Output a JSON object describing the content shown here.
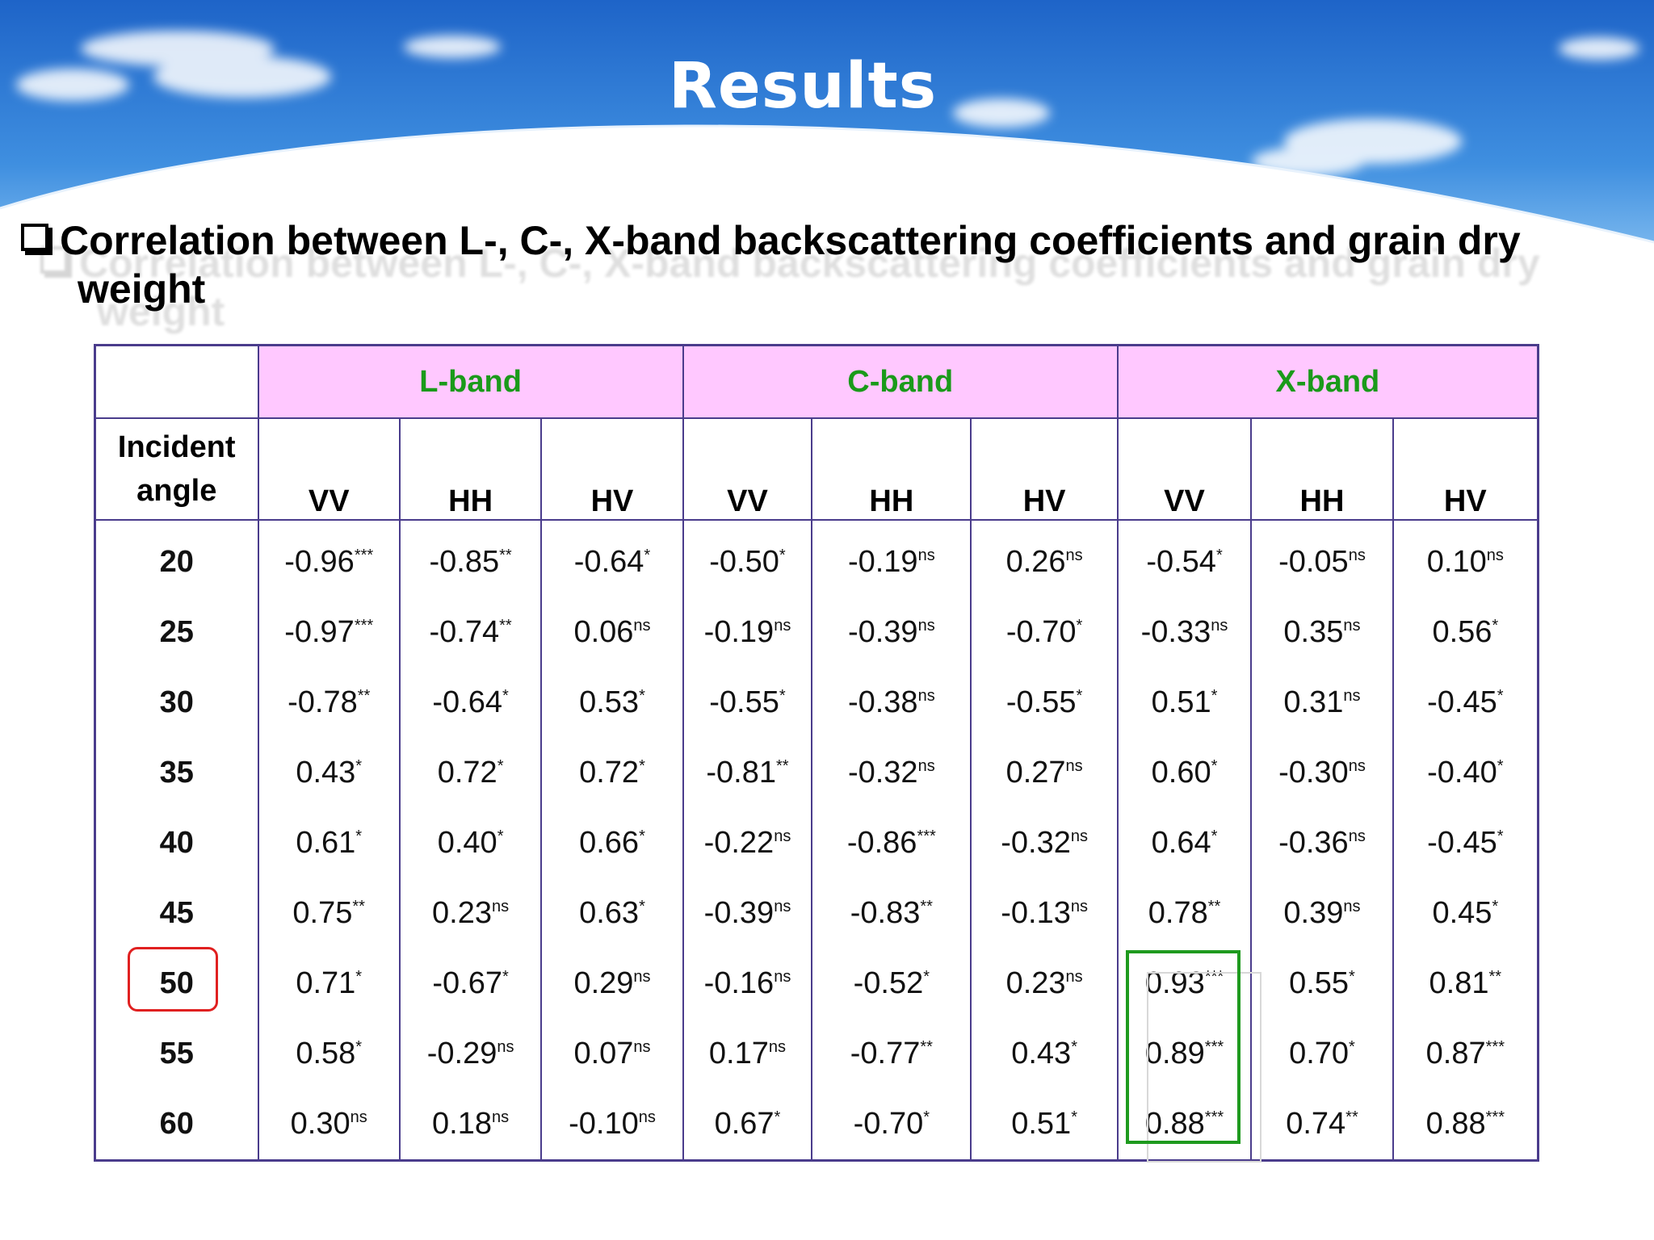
{
  "slide": {
    "title": "Results"
  },
  "heading": {
    "line1": "Correlation between L-, C-, X-band backscattering coefficients and grain dry",
    "line2": "weight"
  },
  "table": {
    "angle_header_line1": "Incident",
    "angle_header_line2": "angle",
    "bands": [
      "L-band",
      "C-band",
      "X-band"
    ],
    "polarizations": [
      "VV",
      "HH",
      "HV",
      "VV",
      "HH",
      "HV",
      "VV",
      "HH",
      "HV"
    ],
    "rows": [
      {
        "angle": "20",
        "cells": [
          [
            "-0.96",
            "***"
          ],
          [
            "-0.85",
            "**"
          ],
          [
            "-0.64",
            "*"
          ],
          [
            "-0.50",
            "*"
          ],
          [
            "-0.19",
            "ns"
          ],
          [
            "0.26",
            "ns"
          ],
          [
            "-0.54",
            "*"
          ],
          [
            "-0.05",
            "ns"
          ],
          [
            "0.10",
            "ns"
          ]
        ]
      },
      {
        "angle": "25",
        "cells": [
          [
            "-0.97",
            "***"
          ],
          [
            "-0.74",
            "**"
          ],
          [
            "0.06",
            "ns"
          ],
          [
            "-0.19",
            "ns"
          ],
          [
            "-0.39",
            "ns"
          ],
          [
            "-0.70",
            "*"
          ],
          [
            "-0.33",
            "ns"
          ],
          [
            "0.35",
            "ns"
          ],
          [
            "0.56",
            "*"
          ]
        ]
      },
      {
        "angle": "30",
        "cells": [
          [
            "-0.78",
            "**"
          ],
          [
            "-0.64",
            "*"
          ],
          [
            "0.53",
            "*"
          ],
          [
            "-0.55",
            "*"
          ],
          [
            "-0.38",
            "ns"
          ],
          [
            "-0.55",
            "*"
          ],
          [
            "0.51",
            "*"
          ],
          [
            "0.31",
            "ns"
          ],
          [
            "-0.45",
            "*"
          ]
        ]
      },
      {
        "angle": "35",
        "cells": [
          [
            "0.43",
            "*"
          ],
          [
            "0.72",
            "*"
          ],
          [
            "0.72",
            "*"
          ],
          [
            "-0.81",
            "**"
          ],
          [
            "-0.32",
            "ns"
          ],
          [
            "0.27",
            "ns"
          ],
          [
            "0.60",
            "*"
          ],
          [
            "-0.30",
            "ns"
          ],
          [
            "-0.40",
            "*"
          ]
        ]
      },
      {
        "angle": "40",
        "cells": [
          [
            "0.61",
            "*"
          ],
          [
            "0.40",
            "*"
          ],
          [
            "0.66",
            "*"
          ],
          [
            "-0.22",
            "ns"
          ],
          [
            "-0.86",
            "***"
          ],
          [
            "-0.32",
            "ns"
          ],
          [
            "0.64",
            "*"
          ],
          [
            "-0.36",
            "ns"
          ],
          [
            "-0.45",
            "*"
          ]
        ]
      },
      {
        "angle": "45",
        "cells": [
          [
            "0.75",
            "**"
          ],
          [
            "0.23",
            "ns"
          ],
          [
            "0.63",
            "*"
          ],
          [
            "-0.39",
            "ns"
          ],
          [
            "-0.83",
            "**"
          ],
          [
            "-0.13",
            "ns"
          ],
          [
            "0.78",
            "**"
          ],
          [
            "0.39",
            "ns"
          ],
          [
            "0.45",
            "*"
          ]
        ]
      },
      {
        "angle": "50",
        "cells": [
          [
            "0.71",
            "*"
          ],
          [
            "-0.67",
            "*"
          ],
          [
            "0.29",
            "ns"
          ],
          [
            "-0.16",
            "ns"
          ],
          [
            "-0.52",
            "*"
          ],
          [
            "0.23",
            "ns"
          ],
          [
            "0.93",
            "***"
          ],
          [
            "0.55",
            "*"
          ],
          [
            "0.81",
            "**"
          ]
        ]
      },
      {
        "angle": "55",
        "cells": [
          [
            "0.58",
            "*"
          ],
          [
            "-0.29",
            "ns"
          ],
          [
            "0.07",
            "ns"
          ],
          [
            "0.17",
            "ns"
          ],
          [
            "-0.77",
            "**"
          ],
          [
            "0.43",
            "*"
          ],
          [
            "0.89",
            "***"
          ],
          [
            "0.70",
            "*"
          ],
          [
            "0.87",
            "***"
          ]
        ]
      },
      {
        "angle": "60",
        "cells": [
          [
            "0.30",
            "ns"
          ],
          [
            "0.18",
            "ns"
          ],
          [
            "-0.10",
            "ns"
          ],
          [
            "0.67",
            "*"
          ],
          [
            "-0.70",
            "*"
          ],
          [
            "0.51",
            "*"
          ],
          [
            "0.88",
            "***"
          ],
          [
            "0.74",
            "**"
          ],
          [
            "0.88",
            "***"
          ]
        ]
      }
    ]
  },
  "colors": {
    "band_header_bg": "#ffc8ff",
    "band_header_text": "#1a9a1a",
    "table_border": "#4a3c8c",
    "highlight_red": "#e02020",
    "highlight_green": "#1e9a1e"
  }
}
